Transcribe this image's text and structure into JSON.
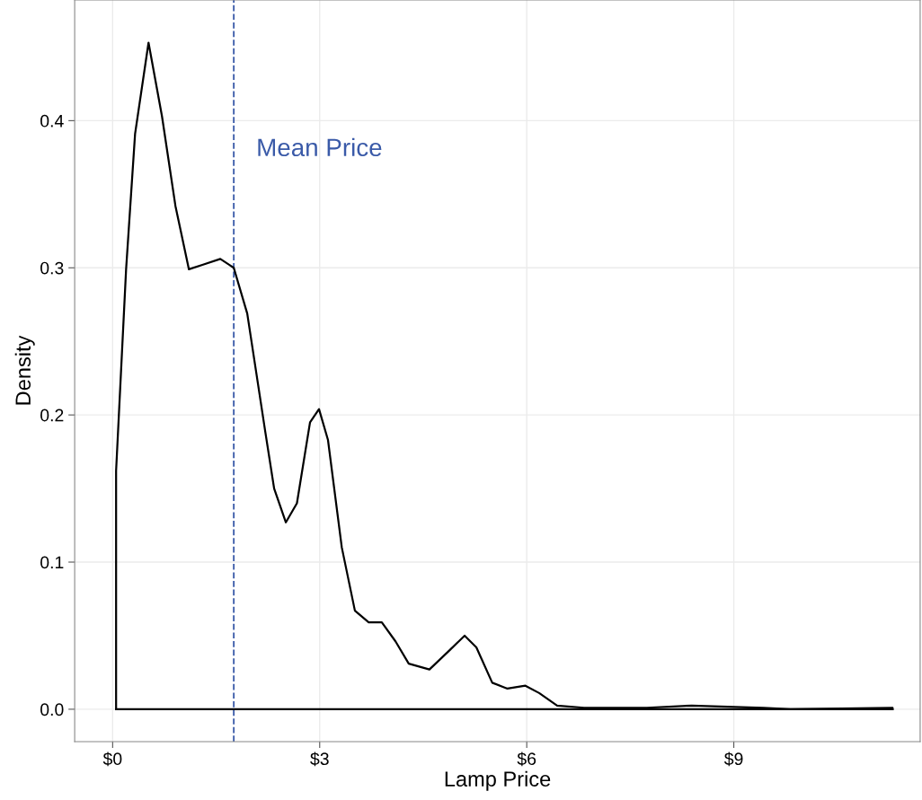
{
  "chart_data": {
    "type": "line",
    "xlabel": "Lamp Price",
    "ylabel": "Density",
    "x": [
      0.05,
      0.05,
      0.195,
      0.325,
      0.52,
      0.715,
      0.91,
      1.105,
      1.3,
      1.56,
      1.755,
      1.95,
      2.21,
      2.34,
      2.51,
      2.67,
      2.86,
      2.99,
      3.12,
      3.32,
      3.51,
      3.71,
      3.9,
      4.1,
      4.29,
      4.59,
      4.88,
      5.1,
      5.27,
      5.5,
      5.72,
      5.98,
      6.18,
      6.44,
      6.83,
      7.74,
      8.39,
      9.43,
      9.82,
      11.3,
      11.3
    ],
    "series": [
      {
        "color": "#000000",
        "values": [
          0.0,
          0.162,
          0.299,
          0.391,
          0.453,
          0.403,
          0.342,
          0.299,
          0.302,
          0.306,
          0.3,
          0.269,
          0.189,
          0.15,
          0.127,
          0.14,
          0.195,
          0.204,
          0.183,
          0.11,
          0.067,
          0.059,
          0.059,
          0.046,
          0.031,
          0.027,
          0.04,
          0.05,
          0.042,
          0.018,
          0.014,
          0.016,
          0.011,
          0.0025,
          0.001,
          0.001,
          0.0025,
          0.001,
          0.0,
          0.001,
          0.0
        ]
      },
      {
        "color": "#000000",
        "x": [
          0.05,
          11.3
        ],
        "values": [
          0.0,
          0.0
        ]
      }
    ],
    "xlim": [
      -0.55,
      11.7
    ],
    "ylim": [
      -0.022,
      0.482
    ],
    "xticks": [
      {
        "value": 0,
        "label": "$0"
      },
      {
        "value": 3,
        "label": "$3"
      },
      {
        "value": 6,
        "label": "$6"
      },
      {
        "value": 9,
        "label": "$9"
      }
    ],
    "yticks": [
      {
        "value": 0,
        "label": "0.0"
      },
      {
        "value": 0.1,
        "label": "0.1"
      },
      {
        "value": 0.2,
        "label": "0.2"
      },
      {
        "value": 0.3,
        "label": "0.3"
      },
      {
        "value": 0.4,
        "label": "0.4"
      }
    ],
    "ref_lines": [
      {
        "axis": "x",
        "value": 1.755,
        "label": "Mean Price",
        "color": "#3a5aa8",
        "line_style": "dashed"
      }
    ],
    "grid": true,
    "marker": "none",
    "line_style": "solid"
  }
}
